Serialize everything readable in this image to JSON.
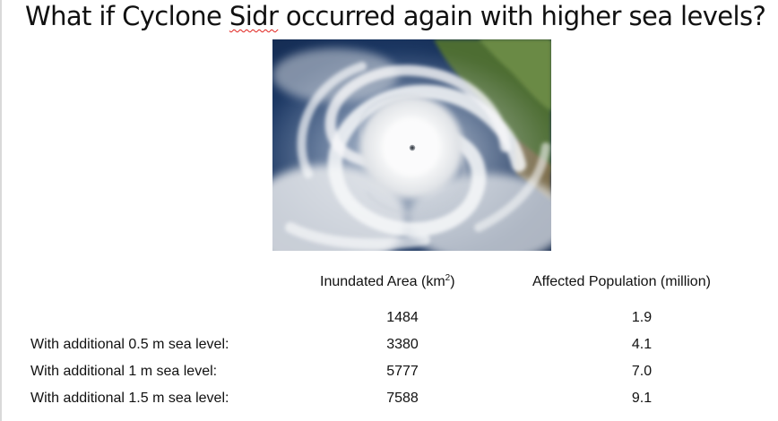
{
  "slide": {
    "title_prefix": "What if Cyclone ",
    "title_highlight": "Sidr",
    "title_suffix": " occurred again with higher sea levels?"
  },
  "image": {
    "subject": "satellite image of tropical cyclone",
    "colors": {
      "ocean": "#1c3a66",
      "land": "#5b7a3c",
      "cloud": "#f2f3f4"
    }
  },
  "table": {
    "header_area_prefix": "Inundated Area (km",
    "header_area_sup": "2",
    "header_area_suffix": ")",
    "header_population": "Affected Population (million)",
    "rows": [
      {
        "label": "",
        "area": "1484",
        "population": "1.9"
      },
      {
        "label": "With additional 0.5 m sea level:",
        "area": "3380",
        "population": "4.1"
      },
      {
        "label": "With additional 1 m sea level:",
        "area": "5777",
        "population": "7.0"
      },
      {
        "label": "With additional 1.5 m sea level:",
        "area": "7588",
        "population": "9.1"
      }
    ]
  },
  "colors": {
    "spellcheck_underline": "#e0201b",
    "text": "#111111"
  }
}
